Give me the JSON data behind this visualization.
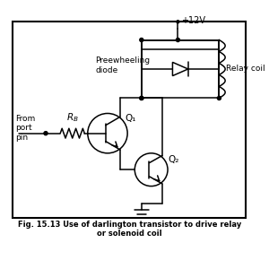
{
  "title": "Fig. 15.13 Use of darlington transistor to drive relay\nor solenoid coil",
  "bg_color": "#ffffff",
  "vcc_label": "+12V",
  "diode_label": "Preewheeling\ndiode",
  "relay_label": "Relay coil",
  "q1_label": "Q₁",
  "q2_label": "Q₂",
  "rb_label": "R_B",
  "port_label": "From\nport\npin",
  "fig_label": "Fig. 15.13 Use of darlington transistor to drive relay\nor solenoid coil"
}
